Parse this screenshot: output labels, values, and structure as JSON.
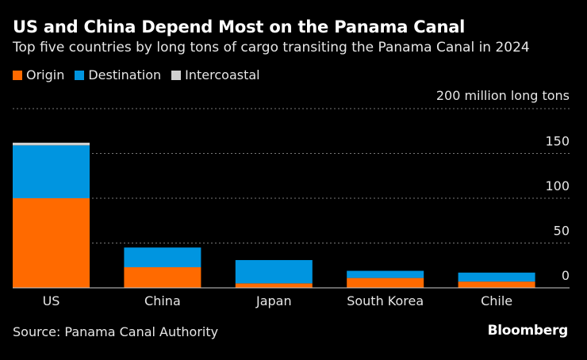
{
  "chart_data": {
    "type": "bar",
    "stacked": true,
    "title": "US and China Depend Most on the Panama Canal",
    "subtitle": "Top five countries by long tons of cargo transiting the Panama Canal in 2024",
    "unit_label": "200 million long tons",
    "categories": [
      "US",
      "China",
      "Japan",
      "South Korea",
      "Chile"
    ],
    "series": [
      {
        "name": "Origin",
        "color": "#ff6a00",
        "values": [
          100,
          23,
          5,
          11,
          7
        ]
      },
      {
        "name": "Destination",
        "color": "#0095e0",
        "values": [
          59,
          22,
          26,
          8,
          10
        ]
      },
      {
        "name": "Intercoastal",
        "color": "#cfcfcf",
        "values": [
          3,
          0,
          0,
          0,
          0
        ]
      }
    ],
    "yticks": [
      0,
      50,
      100,
      150
    ],
    "ylim": [
      0,
      200
    ],
    "grid": true,
    "legend_position": "top-left"
  },
  "source": "Source: Panama Canal Authority",
  "brand": "Bloomberg"
}
